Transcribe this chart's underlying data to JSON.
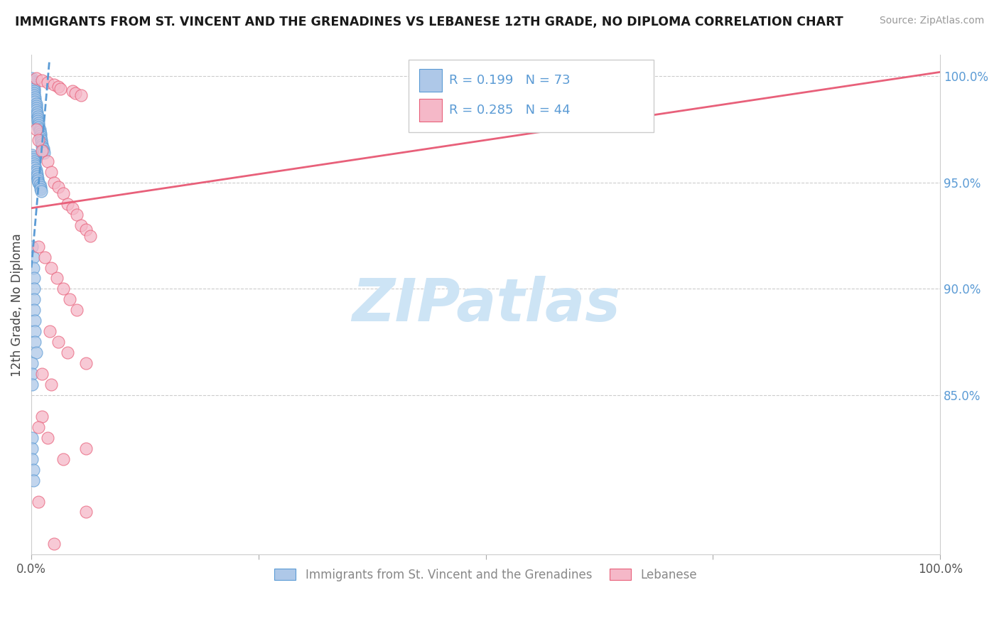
{
  "title": "IMMIGRANTS FROM ST. VINCENT AND THE GRENADINES VS LEBANESE 12TH GRADE, NO DIPLOMA CORRELATION CHART",
  "source": "Source: ZipAtlas.com",
  "ylabel": "12th Grade, No Diploma",
  "legend1_label": "Immigrants from St. Vincent and the Grenadines",
  "legend2_label": "Lebanese",
  "blue_R": 0.199,
  "blue_N": 73,
  "pink_R": 0.285,
  "pink_N": 44,
  "blue_color": "#aec8e8",
  "pink_color": "#f5b8c8",
  "blue_edge_color": "#5b9bd5",
  "pink_edge_color": "#e8607a",
  "blue_line_color": "#5b9bd5",
  "pink_line_color": "#e8607a",
  "ytick_labels": [
    "100.0%",
    "95.0%",
    "90.0%",
    "85.0%"
  ],
  "ytick_positions": [
    1.0,
    0.95,
    0.9,
    0.85
  ],
  "xlim": [
    0.0,
    1.0
  ],
  "ylim": [
    0.775,
    1.01
  ],
  "watermark": "ZIPatlas",
  "watermark_color": "#cde4f5",
  "blue_scatter_x": [
    0.001,
    0.001,
    0.002,
    0.002,
    0.002,
    0.003,
    0.003,
    0.003,
    0.003,
    0.004,
    0.004,
    0.004,
    0.005,
    0.005,
    0.005,
    0.005,
    0.006,
    0.006,
    0.007,
    0.007,
    0.007,
    0.008,
    0.008,
    0.008,
    0.009,
    0.009,
    0.01,
    0.01,
    0.01,
    0.011,
    0.011,
    0.012,
    0.012,
    0.013,
    0.013,
    0.014,
    0.001,
    0.002,
    0.002,
    0.003,
    0.003,
    0.004,
    0.004,
    0.005,
    0.005,
    0.006,
    0.006,
    0.007,
    0.007,
    0.008,
    0.009,
    0.01,
    0.01,
    0.011,
    0.001,
    0.002,
    0.002,
    0.003,
    0.003,
    0.003,
    0.003,
    0.004,
    0.004,
    0.004,
    0.005,
    0.001,
    0.001,
    0.001,
    0.001,
    0.001,
    0.001,
    0.002,
    0.002
  ],
  "blue_scatter_y": [
    0.999,
    0.998,
    0.997,
    0.996,
    0.995,
    0.994,
    0.993,
    0.992,
    0.991,
    0.99,
    0.989,
    0.988,
    0.987,
    0.986,
    0.985,
    0.984,
    0.983,
    0.982,
    0.981,
    0.98,
    0.979,
    0.978,
    0.977,
    0.976,
    0.975,
    0.974,
    0.973,
    0.972,
    0.971,
    0.97,
    0.969,
    0.968,
    0.967,
    0.966,
    0.965,
    0.964,
    0.963,
    0.962,
    0.961,
    0.96,
    0.959,
    0.958,
    0.957,
    0.956,
    0.955,
    0.954,
    0.953,
    0.952,
    0.951,
    0.95,
    0.949,
    0.948,
    0.947,
    0.946,
    0.92,
    0.915,
    0.91,
    0.905,
    0.9,
    0.895,
    0.89,
    0.885,
    0.88,
    0.875,
    0.87,
    0.865,
    0.86,
    0.855,
    0.83,
    0.825,
    0.82,
    0.815,
    0.81
  ],
  "pink_scatter_x": [
    0.005,
    0.012,
    0.018,
    0.025,
    0.03,
    0.032,
    0.045,
    0.048,
    0.055,
    0.005,
    0.008,
    0.012,
    0.018,
    0.022,
    0.025,
    0.03,
    0.035,
    0.04,
    0.045,
    0.05,
    0.055,
    0.06,
    0.065,
    0.008,
    0.015,
    0.022,
    0.028,
    0.035,
    0.042,
    0.05,
    0.02,
    0.03,
    0.04,
    0.06,
    0.012,
    0.022,
    0.012,
    0.008,
    0.018,
    0.06,
    0.035,
    0.008,
    0.06,
    0.025
  ],
  "pink_scatter_y": [
    0.999,
    0.998,
    0.997,
    0.996,
    0.995,
    0.994,
    0.993,
    0.992,
    0.991,
    0.975,
    0.97,
    0.965,
    0.96,
    0.955,
    0.95,
    0.948,
    0.945,
    0.94,
    0.938,
    0.935,
    0.93,
    0.928,
    0.925,
    0.92,
    0.915,
    0.91,
    0.905,
    0.9,
    0.895,
    0.89,
    0.88,
    0.875,
    0.87,
    0.865,
    0.86,
    0.855,
    0.84,
    0.835,
    0.83,
    0.825,
    0.82,
    0.8,
    0.795,
    0.78
  ],
  "pink_line_start_x": 0.0,
  "pink_line_start_y": 0.938,
  "pink_line_end_x": 1.0,
  "pink_line_end_y": 1.002,
  "blue_line_start_x": 0.0,
  "blue_line_start_y": 0.91,
  "blue_line_end_x": 0.02,
  "blue_line_end_y": 1.008
}
